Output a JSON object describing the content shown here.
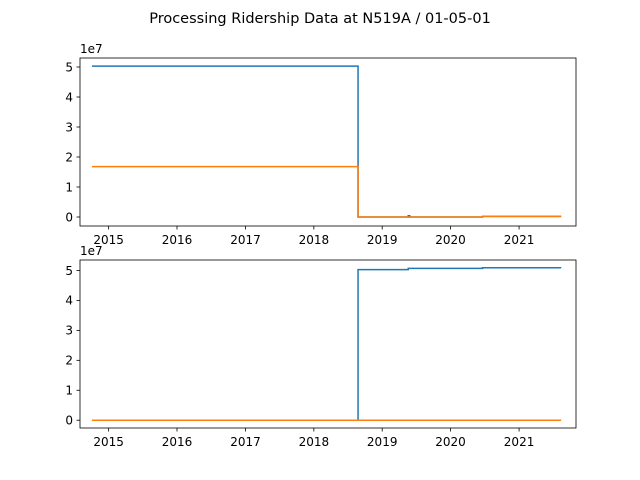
{
  "chart_data": {
    "title": "Processing Ridership Data at N519A / 01-05-01",
    "type": "line",
    "colors": {
      "series_1": "#1f77b4",
      "series_2": "#ff7f0e"
    },
    "subplots": [
      {
        "type": "line",
        "drawstyle": "steps",
        "x_axis": {
          "type": "date",
          "range": [
            "2014-08-01",
            "2021-11-01"
          ],
          "tick_labels": [
            "2015",
            "2016",
            "2017",
            "2018",
            "2019",
            "2020",
            "2021"
          ]
        },
        "y_axis": {
          "range": [
            -0.3,
            5.3
          ],
          "scale_label": "1e7",
          "tick_labels": [
            "0",
            "1",
            "2",
            "3",
            "4",
            "5"
          ]
        },
        "grid": false,
        "legend": false,
        "series": [
          {
            "color": "#1f77b4",
            "points": [
              [
                "2014-10-04",
                5.03
              ],
              [
                "2018-08-25",
                5.03
              ],
              [
                "2018-08-25",
                0.0
              ],
              [
                "2019-05-20",
                0.0
              ],
              [
                "2019-05-20",
                0.04
              ],
              [
                "2019-05-28",
                0.04
              ],
              [
                "2019-05-28",
                0.0
              ],
              [
                "2020-06-20",
                0.0
              ],
              [
                "2020-06-20",
                0.02
              ],
              [
                "2021-08-14",
                0.02
              ]
            ]
          },
          {
            "color": "#ff7f0e",
            "points": [
              [
                "2014-10-04",
                1.68
              ],
              [
                "2018-08-25",
                1.68
              ],
              [
                "2018-08-25",
                0.0
              ],
              [
                "2020-06-20",
                0.0
              ],
              [
                "2020-06-20",
                0.02
              ],
              [
                "2021-08-14",
                0.02
              ]
            ]
          }
        ]
      },
      {
        "type": "line",
        "drawstyle": "steps",
        "x_axis": {
          "type": "date",
          "range": [
            "2014-08-01",
            "2021-11-01"
          ],
          "tick_labels": [
            "2015",
            "2016",
            "2017",
            "2018",
            "2019",
            "2020",
            "2021"
          ]
        },
        "y_axis": {
          "range": [
            -0.26,
            5.35
          ],
          "scale_label": "1e7",
          "tick_labels": [
            "0",
            "1",
            "2",
            "3",
            "4",
            "5"
          ]
        },
        "grid": false,
        "legend": false,
        "series": [
          {
            "color": "#1f77b4",
            "points": [
              [
                "2014-10-04",
                0.0
              ],
              [
                "2018-08-25",
                0.0
              ],
              [
                "2018-08-25",
                5.03
              ],
              [
                "2019-05-20",
                5.03
              ],
              [
                "2019-05-20",
                5.07
              ],
              [
                "2020-06-20",
                5.07
              ],
              [
                "2020-06-20",
                5.09
              ],
              [
                "2021-08-14",
                5.09
              ]
            ]
          },
          {
            "color": "#ff7f0e",
            "points": [
              [
                "2014-10-04",
                0.0
              ],
              [
                "2021-08-14",
                0.0
              ]
            ]
          }
        ]
      }
    ]
  }
}
